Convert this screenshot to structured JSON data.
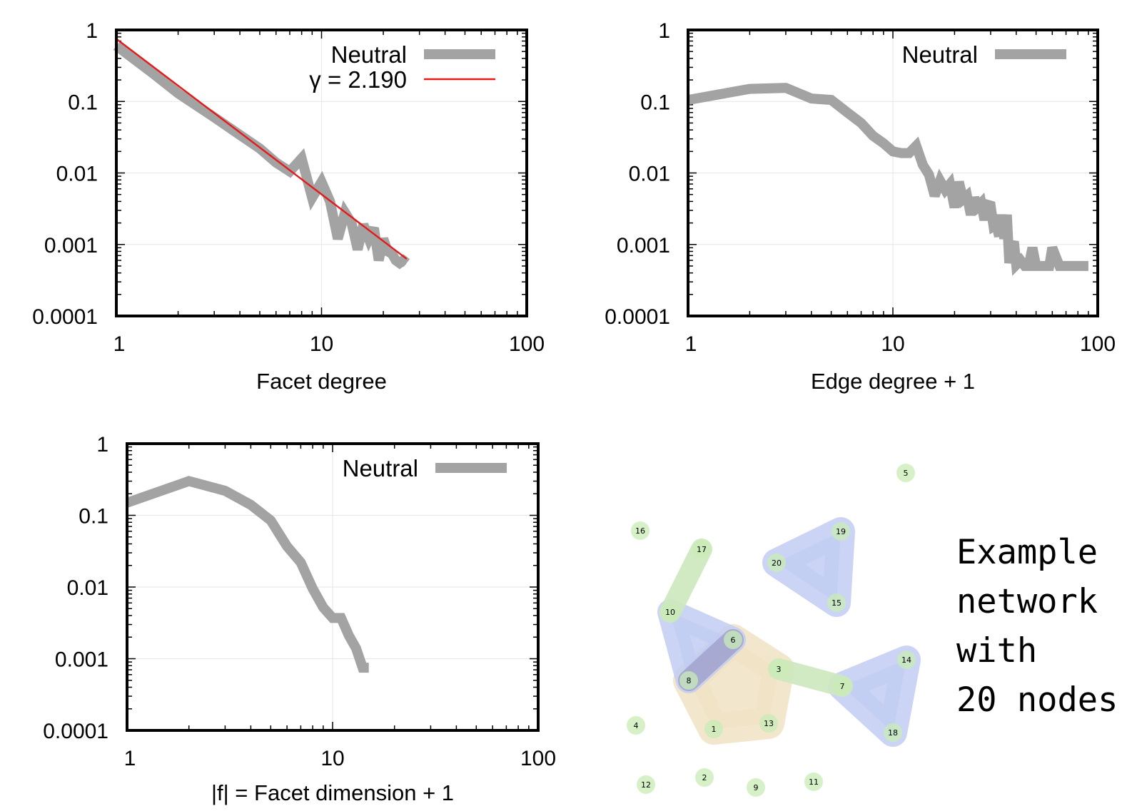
{
  "chart_data": [
    {
      "type": "line",
      "xlabel": "Facet degree",
      "ylabel": "",
      "xscale": "log",
      "yscale": "log",
      "xlim": [
        1,
        100
      ],
      "ylim": [
        0.0001,
        1
      ],
      "xticks": [
        "1",
        "10",
        "100"
      ],
      "yticks": [
        "0.0001",
        "0.001",
        "0.01",
        "0.1",
        "1"
      ],
      "grid": true,
      "legend_position": "top-right",
      "series": [
        {
          "name": "Neutral",
          "style": "thick-gray",
          "x": [
            1,
            1.5,
            2,
            3,
            4,
            5,
            6,
            7,
            8,
            9,
            10,
            11,
            12,
            13,
            14,
            15,
            16,
            17,
            18,
            19,
            20,
            21,
            22,
            23,
            24,
            25,
            26
          ],
          "y": [
            0.6,
            0.25,
            0.13,
            0.06,
            0.034,
            0.022,
            0.014,
            0.0105,
            0.016,
            0.0045,
            0.0075,
            0.004,
            0.0012,
            0.0028,
            0.002,
            0.00085,
            0.0019,
            0.0012,
            0.0017,
            0.0006,
            0.0012,
            0.0008,
            0.00075,
            0.0006,
            0.00055,
            0.0006,
            0.00055
          ]
        },
        {
          "name": "γ = 2.190",
          "style": "red-fit",
          "x": [
            1,
            26
          ],
          "y": [
            0.75,
            0.00063
          ]
        }
      ]
    },
    {
      "type": "line",
      "xlabel": "Edge degree + 1",
      "ylabel": "",
      "xscale": "log",
      "yscale": "log",
      "xlim": [
        1,
        100
      ],
      "ylim": [
        0.0001,
        1
      ],
      "xticks": [
        "1",
        "10",
        "100"
      ],
      "yticks": [
        "0.0001",
        "0.001",
        "0.01",
        "0.1",
        "1"
      ],
      "grid": true,
      "legend_position": "top-right",
      "series": [
        {
          "name": "Neutral",
          "style": "thick-gray",
          "x": [
            1,
            2,
            3,
            4,
            5,
            6,
            7,
            8,
            9,
            10,
            11,
            12,
            13,
            14,
            15,
            16,
            17,
            18,
            19,
            20,
            21,
            22,
            23,
            24,
            25,
            26,
            27,
            28,
            29,
            30,
            31,
            32,
            33,
            34,
            35,
            36,
            37,
            38,
            39,
            40,
            42,
            44,
            46,
            48,
            50,
            55,
            58,
            60,
            65,
            70,
            80,
            90
          ],
          "y": [
            0.105,
            0.15,
            0.155,
            0.11,
            0.105,
            0.07,
            0.05,
            0.033,
            0.026,
            0.02,
            0.019,
            0.019,
            0.024,
            0.013,
            0.0095,
            0.0048,
            0.0078,
            0.0058,
            0.007,
            0.0033,
            0.0075,
            0.0043,
            0.0048,
            0.0026,
            0.0045,
            0.0034,
            0.0038,
            0.0022,
            0.0036,
            0.0035,
            0.0018,
            0.0019,
            0.0013,
            0.0026,
            0.0012,
            0.0026,
            0.00055,
            0.0009,
            0.0011,
            0.00052,
            0.0006,
            0.0005,
            0.0005,
            0.0009,
            0.0005,
            0.0005,
            0.0005,
            0.0009,
            0.0005,
            0.0005,
            0.0005,
            0.0005
          ]
        }
      ]
    },
    {
      "type": "line",
      "xlabel": "|f| = Facet dimension + 1",
      "ylabel": "",
      "xscale": "log",
      "yscale": "log",
      "xlim": [
        1,
        100
      ],
      "ylim": [
        0.0001,
        1
      ],
      "xticks": [
        "1",
        "10",
        "100"
      ],
      "yticks": [
        "0.0001",
        "0.001",
        "0.01",
        "0.1",
        "1"
      ],
      "grid": true,
      "legend_position": "top-right",
      "series": [
        {
          "name": "Neutral",
          "style": "thick-gray",
          "x": [
            1,
            2,
            3,
            4,
            5,
            6,
            7,
            8,
            9,
            10,
            11,
            12,
            13,
            14,
            15
          ],
          "y": [
            0.15,
            0.3,
            0.22,
            0.14,
            0.085,
            0.037,
            0.022,
            0.0095,
            0.0052,
            0.0037,
            0.0037,
            0.0021,
            0.0014,
            0.00075,
            0.00075
          ]
        }
      ]
    }
  ],
  "network": {
    "caption_lines": [
      "Example",
      "network",
      "with",
      "20 nodes"
    ],
    "colors": {
      "node": "#c8ecb6",
      "edge_link": "#cde8be",
      "triangle": "#c2ccf2",
      "tetra": "#f0e2c4",
      "link_dark": "#a2a2cc"
    },
    "nodes": [
      {
        "id": "1"
      },
      {
        "id": "2"
      },
      {
        "id": "3"
      },
      {
        "id": "4"
      },
      {
        "id": "5"
      },
      {
        "id": "6"
      },
      {
        "id": "7"
      },
      {
        "id": "8"
      },
      {
        "id": "9"
      },
      {
        "id": "10"
      },
      {
        "id": "11"
      },
      {
        "id": "12"
      },
      {
        "id": "13"
      },
      {
        "id": "14"
      },
      {
        "id": "15"
      },
      {
        "id": "16"
      },
      {
        "id": "17"
      },
      {
        "id": "18"
      },
      {
        "id": "19"
      },
      {
        "id": "20"
      }
    ]
  }
}
